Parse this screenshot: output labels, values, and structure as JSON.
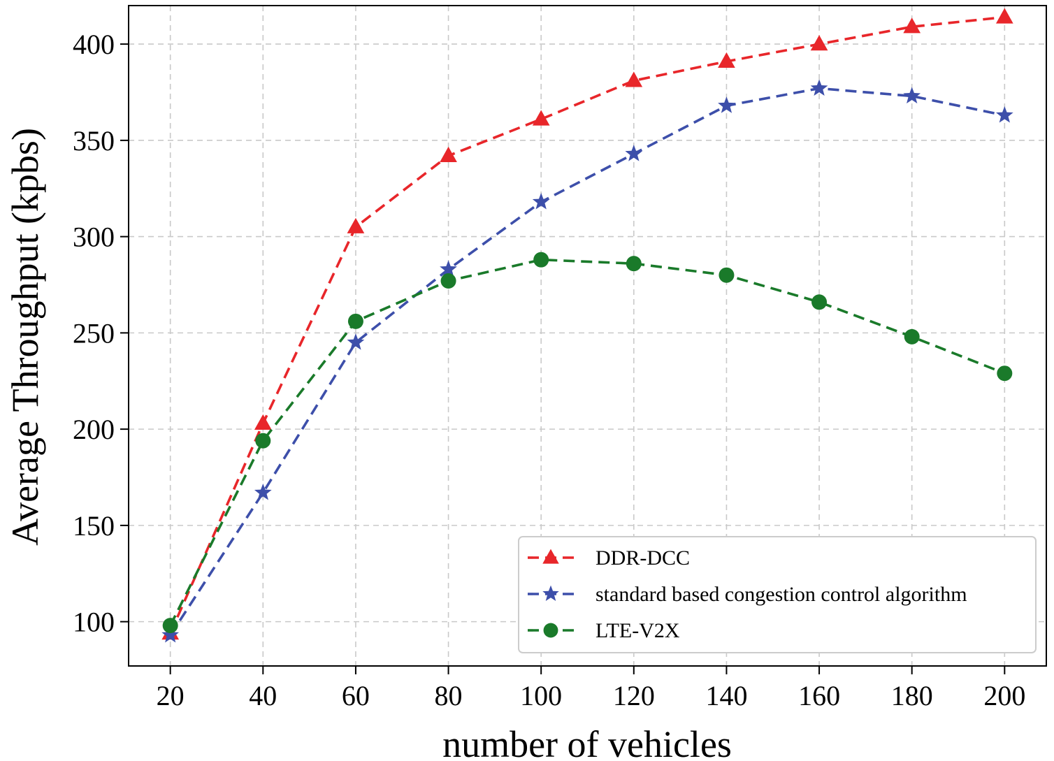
{
  "chart_data": {
    "type": "line",
    "title": "",
    "xlabel": "number of vehicles",
    "ylabel": "Average Throughput (kpbs)",
    "x": [
      20,
      40,
      60,
      80,
      100,
      120,
      140,
      160,
      180,
      200
    ],
    "xticks": [
      20,
      40,
      60,
      80,
      100,
      120,
      140,
      160,
      180,
      200
    ],
    "yticks": [
      100,
      150,
      200,
      250,
      300,
      350,
      400
    ],
    "xlim": [
      11,
      209
    ],
    "ylim": [
      77,
      420
    ],
    "grid": true,
    "legend_position": "lower-right",
    "series": [
      {
        "name": "DDR-DCC",
        "color": "#e8262a",
        "marker": "triangle",
        "linestyle": "dashed",
        "values": [
          94,
          203,
          305,
          342,
          361,
          381,
          391,
          400,
          409,
          414
        ]
      },
      {
        "name": "standard based congestion control algorithm",
        "color": "#3d4faa",
        "marker": "star",
        "linestyle": "dashed",
        "values": [
          93,
          167,
          245,
          283,
          318,
          343,
          368,
          377,
          373,
          363
        ]
      },
      {
        "name": "LTE-V2X",
        "color": "#1a7a2a",
        "marker": "circle",
        "linestyle": "dashed",
        "values": [
          98,
          194,
          256,
          277,
          288,
          286,
          280,
          266,
          248,
          229
        ]
      }
    ]
  }
}
